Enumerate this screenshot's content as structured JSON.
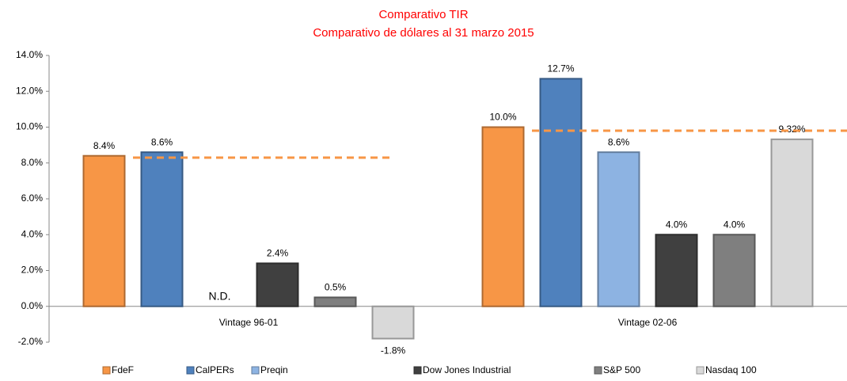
{
  "chart_data": {
    "type": "bar",
    "title": "Comparativo TIR",
    "subtitle": "Comparativo de dólares al 31 marzo 2015",
    "categories": [
      "Vintage 96-01",
      "Vintage 02-06"
    ],
    "series": [
      {
        "name": "FdeF",
        "color": "#f79646",
        "values": [
          8.4,
          10.0
        ],
        "value_labels": [
          "8.4%",
          "10.0%"
        ]
      },
      {
        "name": "CalPERs",
        "color": "#4f81bd",
        "values": [
          8.6,
          12.7
        ],
        "value_labels": [
          "8.6%",
          "12.7%"
        ]
      },
      {
        "name": "Preqin",
        "color": "#8db3e2",
        "values": [
          null,
          8.6
        ],
        "value_labels": [
          "N.D.",
          "8.6%"
        ]
      },
      {
        "name": "Dow Jones Industrial",
        "color": "#404040",
        "values": [
          2.4,
          4.0
        ],
        "value_labels": [
          "2.4%",
          "4.0%"
        ]
      },
      {
        "name": "S&P 500",
        "color": "#7f7f7f",
        "values": [
          0.5,
          4.0
        ],
        "value_labels": [
          "0.5%",
          "4.0%"
        ]
      },
      {
        "name": "Nasdaq 100",
        "color": "#d9d9d9",
        "values": [
          -1.8,
          9.32
        ],
        "value_labels": [
          "-1.8%",
          "9.32%"
        ]
      }
    ],
    "reference_lines": [
      {
        "value": 8.3,
        "color": "#f79646"
      },
      {
        "value": 9.8,
        "color": "#f79646"
      }
    ],
    "ylim": [
      -2,
      14
    ],
    "yticks": [
      {
        "value": -2,
        "label": "-2.0%"
      },
      {
        "value": 0,
        "label": "0.0%"
      },
      {
        "value": 2,
        "label": "2.0%"
      },
      {
        "value": 4,
        "label": "4.0%"
      },
      {
        "value": 6,
        "label": "6.0%"
      },
      {
        "value": 8,
        "label": "8.0%"
      },
      {
        "value": 10,
        "label": "10.0%"
      },
      {
        "value": 12,
        "label": "12.0%"
      },
      {
        "value": 14,
        "label": "14.0%"
      }
    ],
    "legend": "bottom"
  }
}
